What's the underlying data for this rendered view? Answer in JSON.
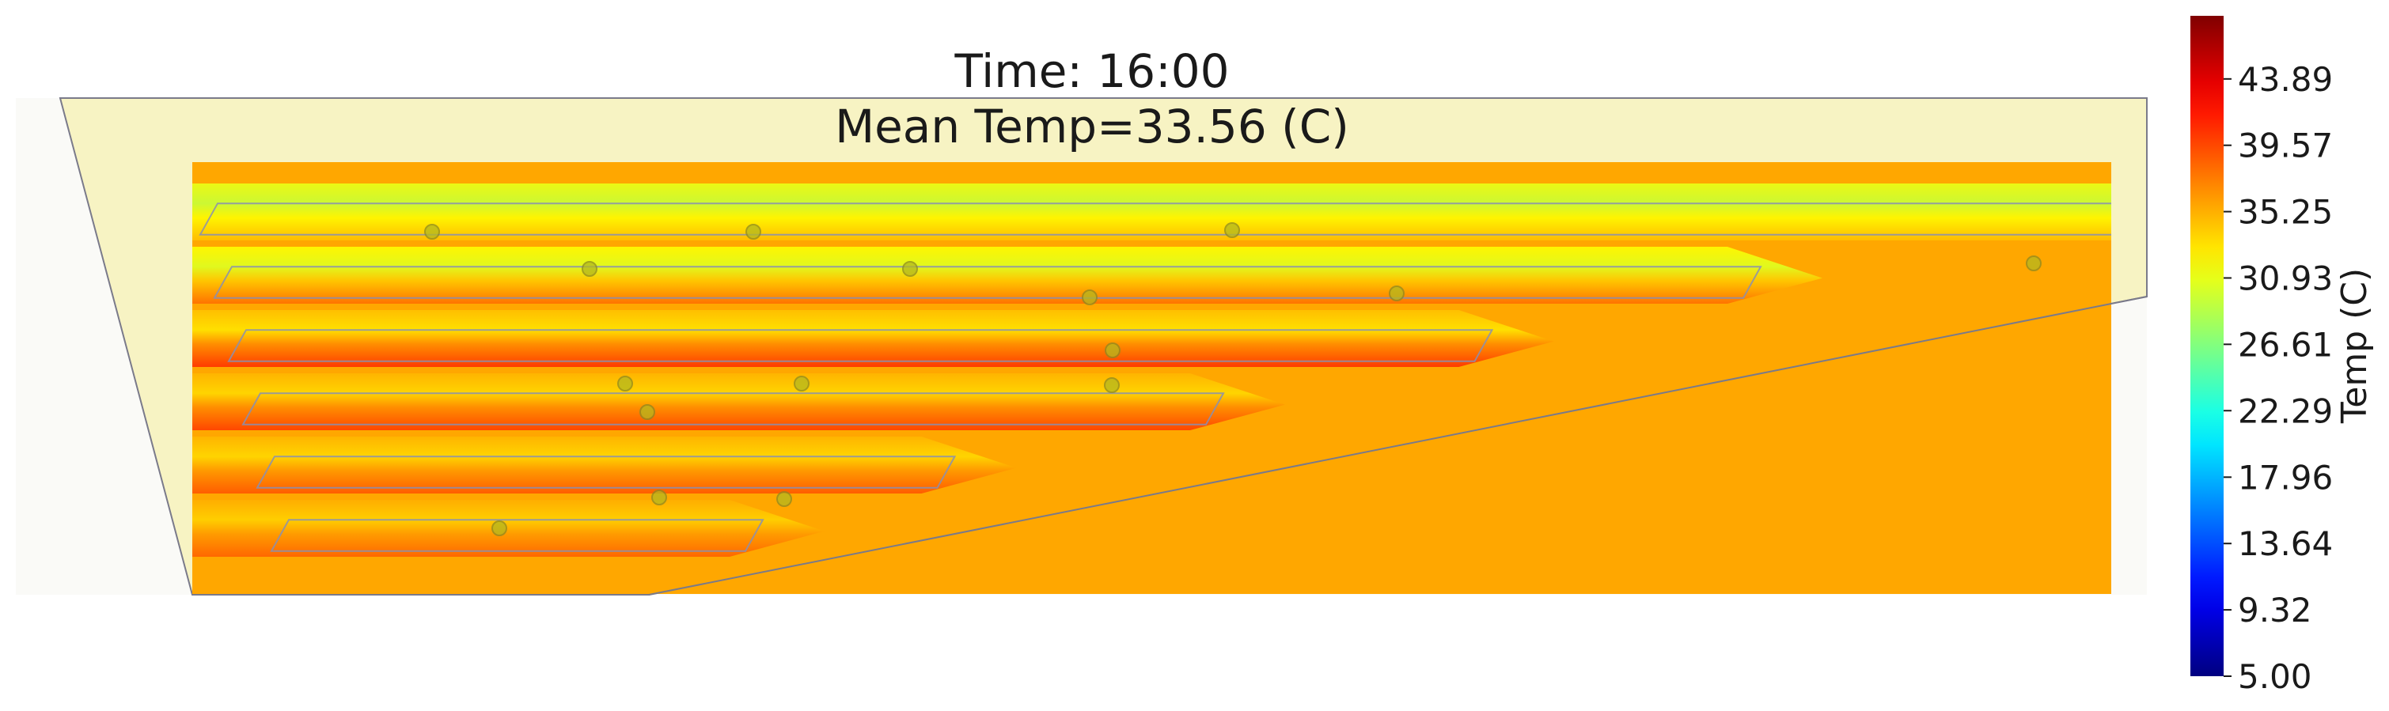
{
  "chart_data": {
    "type": "heatmap",
    "title": "Time: 16:00",
    "subtitle": "Mean Temp=33.56 (C)",
    "time": "16:00",
    "mean_temp": 33.56,
    "colorbar": {
      "label": "Temp (C)",
      "vmin": 5.0,
      "vmax": 48.0,
      "ticks": [
        "5.00",
        "9.32",
        "13.64",
        "17.96",
        "22.29",
        "26.61",
        "30.93",
        "35.25",
        "39.57",
        "43.89"
      ],
      "tick_values": [
        5.0,
        9.32,
        13.64,
        17.96,
        22.29,
        26.61,
        30.93,
        35.25,
        39.57,
        43.89
      ],
      "colormap": "jet"
    },
    "background_temp": 35.6,
    "rows": [
      {
        "length": 1.0,
        "edge_temp": 34.6,
        "center_temp": 29.5
      },
      {
        "length": 0.8,
        "edge_temp": 38.0,
        "center_temp": 30.5
      },
      {
        "length": 0.66,
        "edge_temp": 40.5,
        "center_temp": 33.0
      },
      {
        "length": 0.52,
        "edge_temp": 40.0,
        "center_temp": 33.5
      },
      {
        "length": 0.38,
        "edge_temp": 39.0,
        "center_temp": 33.5
      },
      {
        "length": 0.28,
        "edge_temp": 38.5,
        "center_temp": 33.8
      }
    ]
  }
}
